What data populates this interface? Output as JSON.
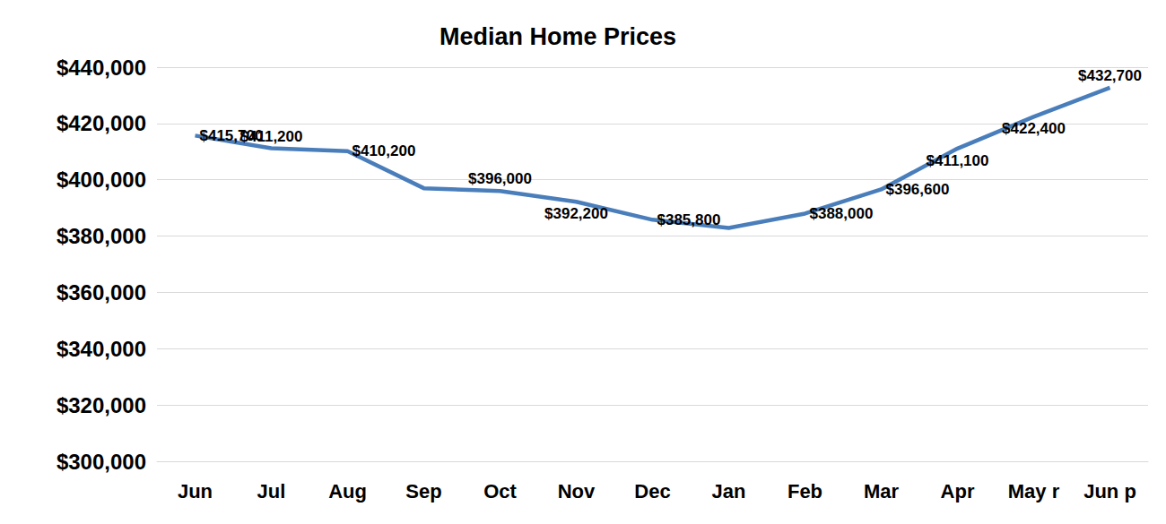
{
  "chart_data": {
    "type": "line",
    "title": "Median Home Prices",
    "categories": [
      "Jun",
      "Jul",
      "Aug",
      "Sep",
      "Oct",
      "Nov",
      "Dec",
      "Jan",
      "Feb",
      "Mar",
      "Apr",
      "May r",
      "Jun p"
    ],
    "values": [
      415700,
      411200,
      410200,
      397000,
      396000,
      392200,
      385800,
      382900,
      388000,
      396600,
      411100,
      422400,
      432700
    ],
    "value_labels": [
      "$415,700",
      "$411,200",
      "$410,200",
      null,
      "$396,000",
      "$392,200",
      "$385,800",
      null,
      "$388,000",
      "$396,600",
      "$411,100",
      "$422,400",
      "$432,700"
    ],
    "data_labels": true,
    "color": "#4a7ebb",
    "ylim": [
      300000,
      440000
    ],
    "yticks": [
      {
        "value": 300000,
        "label": "$300,000"
      },
      {
        "value": 320000,
        "label": "$320,000"
      },
      {
        "value": 340000,
        "label": "$340,000"
      },
      {
        "value": 360000,
        "label": "$360,000"
      },
      {
        "value": 380000,
        "label": "$380,000"
      },
      {
        "value": 400000,
        "label": "$400,000"
      },
      {
        "value": 420000,
        "label": "$420,000"
      },
      {
        "value": 440000,
        "label": "$440,000"
      }
    ],
    "grid": true
  }
}
